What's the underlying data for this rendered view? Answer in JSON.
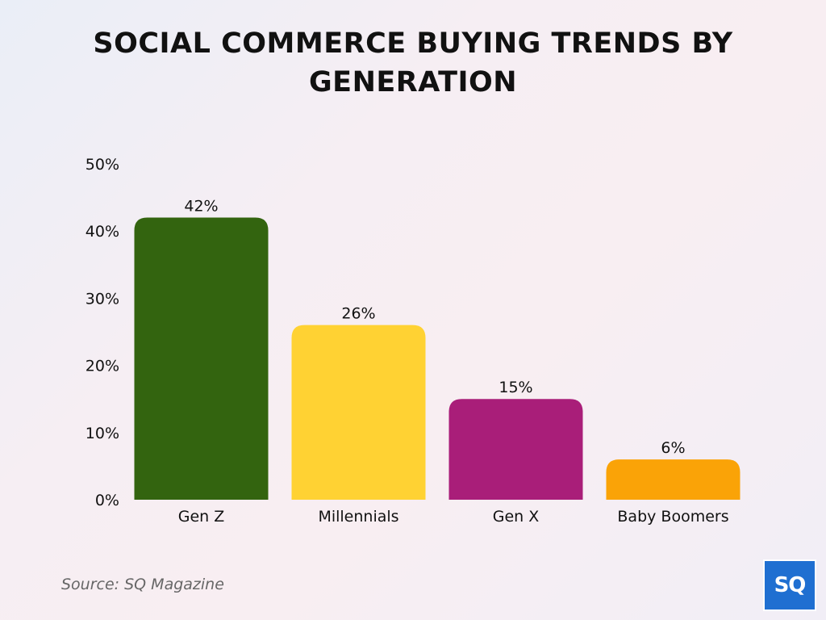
{
  "chart_data": {
    "type": "bar",
    "title": "SOCIAL COMMERCE BUYING TRENDS BY GENERATION",
    "categories": [
      "Gen Z",
      "Millennials",
      "Gen X",
      "Baby Boomers"
    ],
    "values": [
      42,
      26,
      15,
      6
    ],
    "data_labels": [
      "42%",
      "26%",
      "15%",
      "6%"
    ],
    "bar_colors": [
      "#33640f",
      "#ffd233",
      "#a91e79",
      "#faa307"
    ],
    "ylim": [
      0,
      50
    ],
    "yticks": [
      0,
      10,
      20,
      30,
      40,
      50
    ],
    "ytick_labels": [
      "0%",
      "10%",
      "20%",
      "30%",
      "40%",
      "50%"
    ],
    "xlabel": "",
    "ylabel": "",
    "grid": false,
    "legend": "none"
  },
  "source": "Source: SQ Magazine",
  "logo": {
    "text": "SQ",
    "color": "#1f6fd1"
  }
}
